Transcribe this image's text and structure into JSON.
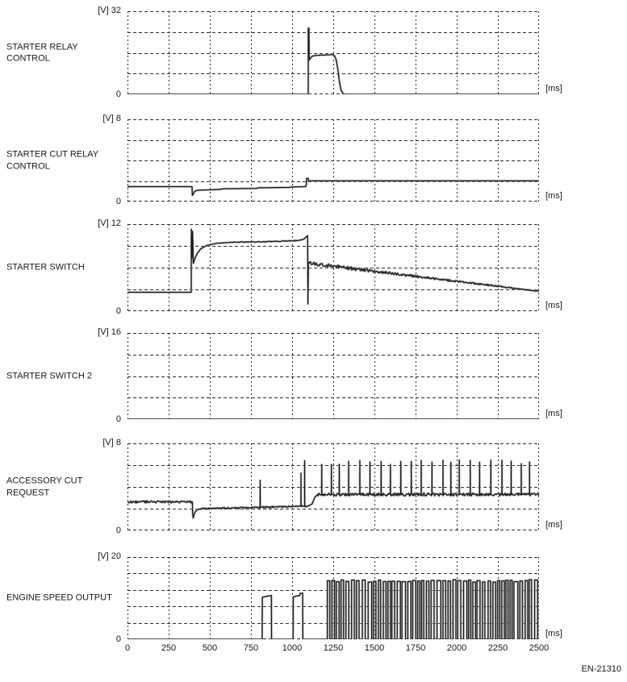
{
  "page": {
    "background": "#ffffff",
    "footnote": "EN-21310"
  },
  "chart_data": {
    "type": "line",
    "title": "",
    "x_unit": "[ms]",
    "x_range": [
      0,
      2500
    ],
    "x_tick_interval": 250,
    "x_ticks": [
      0,
      250,
      500,
      750,
      1000,
      1250,
      1500,
      1750,
      2000,
      2250,
      2500
    ],
    "grid": {
      "vertical_divisions": 10,
      "style": "dashed",
      "color": "#2e2e2e"
    },
    "trace_colors": {
      "gray": "#9c9c9c",
      "black": "#181818"
    },
    "panels": [
      {
        "label": "STARTER RELAY CONTROL",
        "y_label": "[V] 32",
        "y_zero": "0",
        "x_unit": "[ms]",
        "y_max": 32,
        "y_divisions": 4,
        "segments": [
          [
            0,
            0
          ],
          [
            1098,
            0
          ],
          [
            1098,
            25.5
          ],
          [
            1102,
            25.5
          ],
          [
            1104,
            13.2
          ],
          [
            1112,
            14.0
          ],
          [
            1125,
            14.8
          ],
          [
            1150,
            15.0
          ],
          [
            1248,
            15.3
          ],
          [
            1258,
            14.8
          ],
          [
            1268,
            13.2
          ],
          [
            1278,
            9.5
          ],
          [
            1288,
            4.5
          ],
          [
            1298,
            1.5
          ],
          [
            1308,
            0.4
          ],
          [
            1318,
            0
          ],
          [
            2500,
            0
          ]
        ]
      },
      {
        "label": "STARTER CUT RELAY CONTROL",
        "y_label": "[V] 8",
        "y_zero": "0",
        "x_unit": "[ms]",
        "y_max": 8,
        "y_divisions": 4,
        "segments": [
          [
            0,
            1.45
          ],
          [
            392,
            1.45
          ],
          [
            394,
            0.6
          ],
          [
            400,
            0.72
          ],
          [
            406,
            0.95
          ],
          [
            414,
            1.05
          ],
          [
            430,
            1.1
          ],
          [
            560,
            1.18
          ],
          [
            580,
            1.24
          ],
          [
            780,
            1.28
          ],
          [
            800,
            1.34
          ],
          [
            980,
            1.38
          ],
          [
            1000,
            1.42
          ],
          [
            1082,
            1.45
          ],
          [
            1086,
            1.6
          ],
          [
            1088,
            2.25
          ],
          [
            1098,
            2.25
          ],
          [
            1100,
            1.95
          ],
          [
            1112,
            2.02
          ],
          [
            2500,
            2.02
          ]
        ]
      },
      {
        "label": "STARTER SWITCH",
        "y_label": "[V] 12",
        "y_zero": "0",
        "x_unit": "[ms]",
        "y_max": 12,
        "y_divisions": 4,
        "segments": [
          [
            0,
            2.6
          ],
          [
            387,
            2.6
          ],
          [
            388,
            11.3
          ],
          [
            392,
            7.3
          ],
          [
            395,
            11.0
          ],
          [
            400,
            6.6
          ],
          [
            410,
            7.3
          ],
          [
            425,
            8.0
          ],
          [
            445,
            8.6
          ],
          [
            480,
            9.05
          ],
          [
            540,
            9.35
          ],
          [
            640,
            9.5
          ],
          [
            800,
            9.55
          ],
          [
            950,
            9.65
          ],
          [
            1040,
            9.75
          ],
          [
            1070,
            9.9
          ],
          [
            1088,
            10.3
          ],
          [
            1094,
            10.4
          ],
          [
            1096,
            1.0
          ],
          [
            1099,
            6.6
          ],
          [
            2500,
            2.75
          ]
        ],
        "noise": [
          {
            "t0": 640,
            "t1": 1060,
            "amp": 0.05
          },
          {
            "t0": 1102,
            "t1": 2500,
            "amp": 0.26,
            "amp_end": 0.05
          }
        ]
      },
      {
        "label": "STARTER SWITCH 2",
        "y_label": "[V] 16",
        "y_zero": "0",
        "x_unit": "[ms]",
        "y_max": 16,
        "y_divisions": 4,
        "segments": [
          [
            0,
            0
          ],
          [
            2500,
            0
          ]
        ]
      },
      {
        "label": "ACCESSORY CUT REQUEST",
        "y_label": "[V] 8",
        "y_zero": "0",
        "x_unit": "[ms]",
        "y_max": 8,
        "y_divisions": 4,
        "segments": [
          [
            0,
            2.62
          ],
          [
            394,
            2.62
          ],
          [
            396,
            1.5
          ],
          [
            399,
            1.15
          ],
          [
            404,
            1.45
          ],
          [
            412,
            1.72
          ],
          [
            424,
            1.9
          ],
          [
            445,
            2.0
          ],
          [
            600,
            2.05
          ],
          [
            780,
            2.12
          ],
          [
            950,
            2.18
          ],
          [
            1080,
            2.22
          ],
          [
            1105,
            2.3
          ],
          [
            1122,
            2.45
          ],
          [
            1138,
            3.05
          ],
          [
            1155,
            3.3
          ],
          [
            2500,
            3.3
          ]
        ],
        "noise": [
          {
            "t0": 4,
            "t1": 392,
            "amp": 0.1
          },
          {
            "t0": 448,
            "t1": 1100,
            "amp": 0.07
          },
          {
            "t0": 1158,
            "t1": 2500,
            "amp": 0.13
          }
        ],
        "spikes": [
          {
            "t": 806,
            "v": 4.6
          },
          {
            "t": 1054,
            "v": 5.25
          },
          {
            "t": 1076,
            "v": 6.4
          }
        ],
        "spike_train": {
          "t0": 1180,
          "t1": 2500,
          "period": 57,
          "v": 6.3,
          "v_jitter": 0.25,
          "p_jitter": 0.2
        }
      },
      {
        "label": "ENGINE SPEED OUTPUT",
        "y_label": "[V] 20",
        "y_zero": "0",
        "x_unit": "[ms]",
        "y_max": 20,
        "y_divisions": 5,
        "segments": [
          [
            0,
            0
          ],
          [
            818,
            0
          ],
          [
            819,
            10.2
          ],
          [
            845,
            10.45
          ],
          [
            874,
            10.65
          ],
          [
            875,
            0
          ],
          [
            1006,
            0
          ],
          [
            1007,
            10.3
          ],
          [
            1030,
            10.55
          ],
          [
            1046,
            10.6
          ],
          [
            1048,
            11.15
          ],
          [
            1064,
            11.25
          ],
          [
            1065,
            0
          ],
          [
            1212,
            0
          ],
          [
            2500,
            0
          ]
        ],
        "pulse_train": {
          "t0": 1214,
          "t1": 2500,
          "period": 30,
          "duty": 0.55,
          "high": 14.2,
          "h_jitter": 0.3,
          "p_jitter": 0.25
        }
      }
    ]
  }
}
